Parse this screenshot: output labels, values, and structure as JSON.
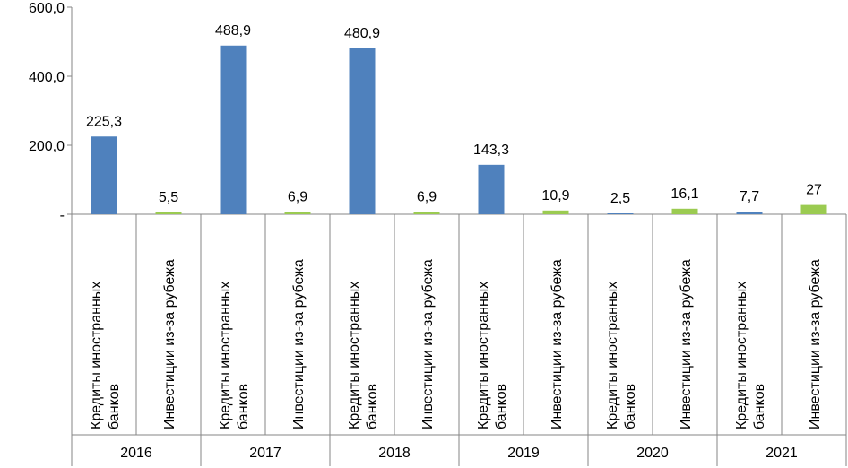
{
  "chart_data": {
    "type": "bar",
    "title": "",
    "xlabel": "",
    "ylabel": "",
    "ylim": [
      0,
      600
    ],
    "yticks": [
      0,
      200,
      400,
      600
    ],
    "ytick_labels": [
      "-",
      "200,0",
      "400,0",
      "600,0"
    ],
    "grid": false,
    "colors": {
      "foreign_bank_loans": "#4f81bd",
      "investments_abroad": "#9bcb51",
      "axis": "#868686"
    },
    "bars": [
      {
        "group": "2016",
        "category": [
          "Кредиты иностранных",
          "банков"
        ],
        "series": "foreign_bank_loans",
        "value": 225.3,
        "label": "225,3"
      },
      {
        "group": "2016",
        "category": [
          "Инвестиции из-за рубежа"
        ],
        "series": "investments_abroad",
        "value": 5.5,
        "label": "5,5"
      },
      {
        "group": "2017",
        "category": [
          "Кредиты иностранных",
          "банков"
        ],
        "series": "foreign_bank_loans",
        "value": 488.9,
        "label": "488,9"
      },
      {
        "group": "2017",
        "category": [
          "Инвестиции из-за рубежа"
        ],
        "series": "investments_abroad",
        "value": 6.9,
        "label": "6,9"
      },
      {
        "group": "2018",
        "category": [
          "Кредиты иностранных",
          "банков"
        ],
        "series": "foreign_bank_loans",
        "value": 480.9,
        "label": "480,9"
      },
      {
        "group": "2018",
        "category": [
          "Инвестиции из-за рубежа"
        ],
        "series": "investments_abroad",
        "value": 6.9,
        "label": "6,9"
      },
      {
        "group": "2019",
        "category": [
          "Кредиты иностранных",
          "банков"
        ],
        "series": "foreign_bank_loans",
        "value": 143.3,
        "label": "143,3"
      },
      {
        "group": "2019",
        "category": [
          "Инвестиции из-за рубежа"
        ],
        "series": "investments_abroad",
        "value": 10.9,
        "label": "10,9"
      },
      {
        "group": "2020",
        "category": [
          "Кредиты иностранных",
          "банков"
        ],
        "series": "foreign_bank_loans",
        "value": 2.5,
        "label": "2,5"
      },
      {
        "group": "2020",
        "category": [
          "Инвестиции из-за рубежа"
        ],
        "series": "investments_abroad",
        "value": 16.1,
        "label": "16,1"
      },
      {
        "group": "2021",
        "category": [
          "Кредиты иностранных",
          "банков"
        ],
        "series": "foreign_bank_loans",
        "value": 7.7,
        "label": "7,7"
      },
      {
        "group": "2021",
        "category": [
          "Инвестиции из-за рубежа"
        ],
        "series": "investments_abroad",
        "value": 27,
        "label": "27"
      }
    ],
    "groups": [
      "2016",
      "2017",
      "2018",
      "2019",
      "2020",
      "2021"
    ]
  }
}
